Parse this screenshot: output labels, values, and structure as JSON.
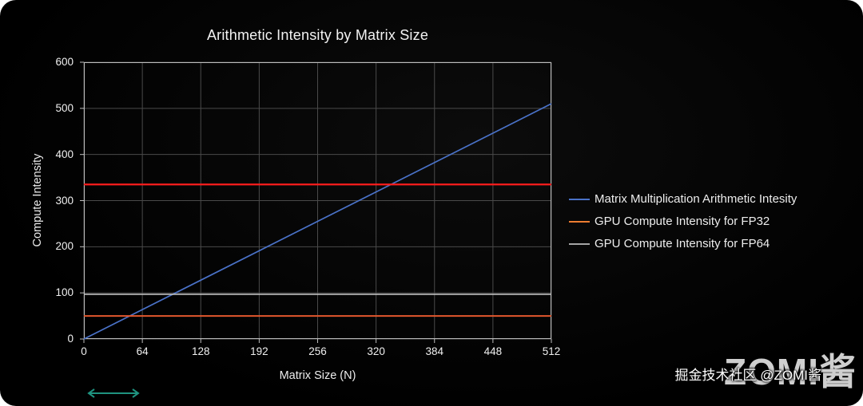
{
  "chart_data": {
    "type": "line",
    "title": "Arithmetic Intensity by Matrix Size",
    "xlabel": "Matrix Size (N)",
    "ylabel": "Compute Intensity",
    "xlim": [
      0,
      512
    ],
    "ylim": [
      0,
      600
    ],
    "x_ticks": [
      0,
      64,
      128,
      192,
      256,
      320,
      384,
      448,
      512
    ],
    "y_ticks": [
      0,
      100,
      200,
      300,
      400,
      500,
      600
    ],
    "grid": true,
    "grid_color": "#4a4a4a",
    "axis_color": "#bdbdbd",
    "plot_bg": "#000000",
    "legend_position": "right-middle",
    "series": [
      {
        "id": "matmul-arithmetic-intensity",
        "name": "Matrix Multiplication Arithmetic Intesity",
        "color": "#4a72c8",
        "width": 1.7,
        "points": [
          [
            0,
            0
          ],
          [
            512,
            510
          ]
        ],
        "in_legend": true
      },
      {
        "id": "red-horizontal-line",
        "name": "",
        "color": "#fb1d1d",
        "width": 2.2,
        "points": [
          [
            0,
            335
          ],
          [
            512,
            335
          ]
        ],
        "in_legend": false
      },
      {
        "id": "gpu-fp64-compute-intensity",
        "name": "GPU Compute Intensity for FP64",
        "color": "#c0c0c0",
        "width": 1.6,
        "points": [
          [
            0,
            97
          ],
          [
            512,
            97
          ]
        ],
        "in_legend": true
      },
      {
        "id": "gpu-fp32-compute-intensity",
        "name": "GPU Compute Intensity for FP32",
        "color": "#e2572d",
        "width": 2,
        "points": [
          [
            0,
            50
          ],
          [
            512,
            50
          ]
        ],
        "in_legend": true
      }
    ],
    "legend": [
      {
        "label": "Matrix Multiplication Arithmetic Intesity",
        "color": "#4a72c8"
      },
      {
        "label": "GPU Compute Intensity for FP32",
        "color": "#ed7d31"
      },
      {
        "label": "GPU Compute Intensity for FP64",
        "color": "#a5a5a5"
      }
    ]
  },
  "watermark": {
    "small_text": "掘金技术社区 @ZOMI酱",
    "big_text": "ZOMI酱"
  },
  "decor": {
    "arrow_color": "#1f9380"
  },
  "colors": {
    "panel_bg": "#000000",
    "text": "#ededed"
  }
}
